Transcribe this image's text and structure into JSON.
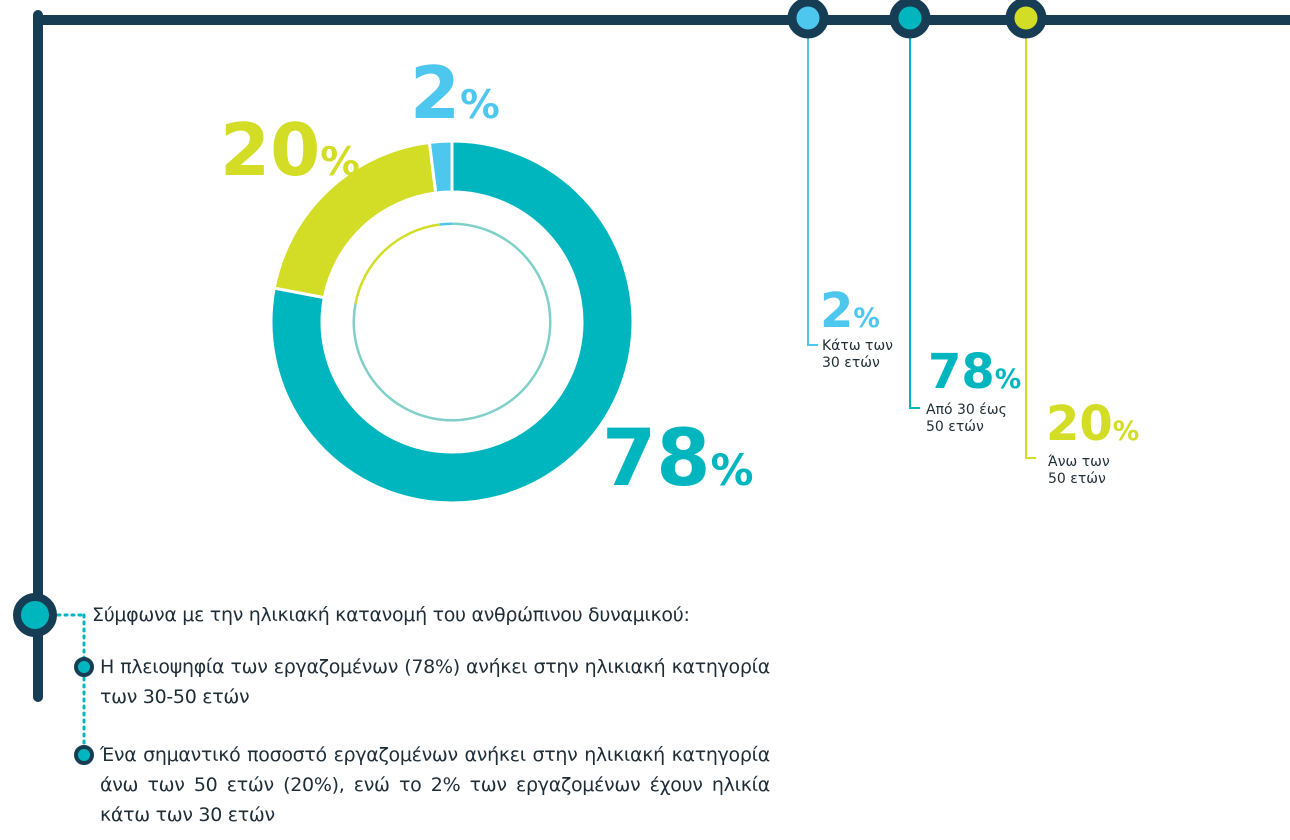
{
  "chart_data": {
    "type": "donut",
    "categories": [
      "Κάτω των 30 ετών",
      "Από 30 έως 50 ετών",
      "Άνω των 50 ετών"
    ],
    "values": [
      2,
      78,
      20
    ],
    "value_labels": [
      "2%",
      "78%",
      "20%"
    ],
    "colors": [
      "#4ec7ee",
      "#00b6be",
      "#d3dd26"
    ]
  },
  "text": {
    "intro": "Σύμφωνα με την ηλικιακή κατανομή του ανθρώπινου δυναμικού:",
    "bullets": [
      "Η πλειοψηφία των εργαζομένων (78%) ανήκει στην ηλικιακή κατηγορία των 30-50 ετών",
      "Ένα σημαντικό ποσοστό εργαζομένων ανήκει στην ηλικιακή κατηγορία άνω των 50 ετών (20%), ενώ το 2% των εργαζομένων έχουν ηλικία κάτω των 30 ετών"
    ]
  }
}
